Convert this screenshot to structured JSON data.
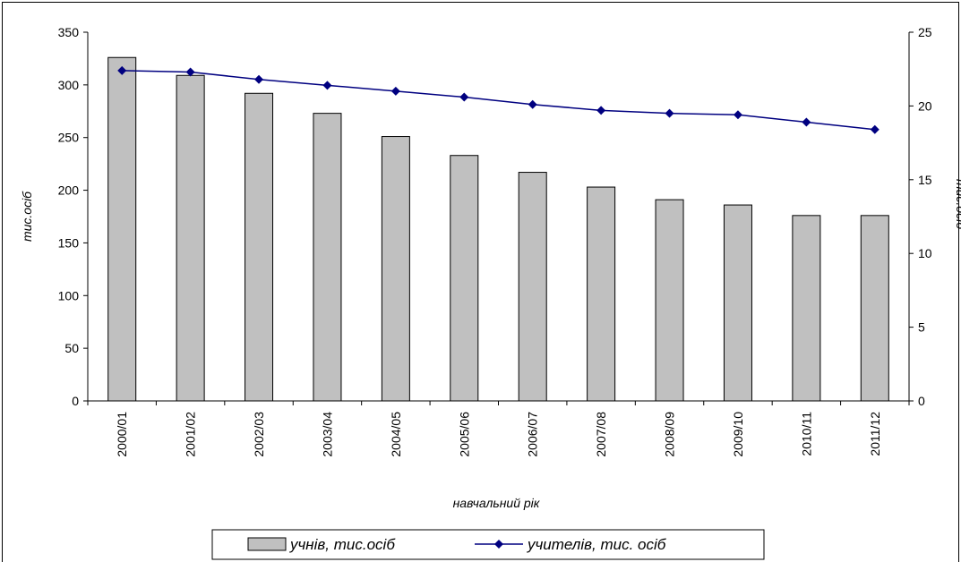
{
  "chart_data": {
    "type": "bar",
    "categories": [
      "2000/01",
      "2001/02",
      "2002/03",
      "2003/04",
      "2004/05",
      "2005/06",
      "2006/07",
      "2007/08",
      "2008/09",
      "2009/10",
      "2010/11",
      "2011/12"
    ],
    "series": [
      {
        "name": "учнів, тис.осіб",
        "type": "bar",
        "axis": "left",
        "color": "#c0c0c0",
        "values": [
          326,
          309,
          292,
          273,
          251,
          233,
          217,
          203,
          191,
          186,
          176,
          176
        ]
      },
      {
        "name": "учителів, тис. осіб",
        "type": "line",
        "axis": "right",
        "color": "#000080",
        "marker": "diamond",
        "values": [
          22.4,
          22.3,
          21.8,
          21.4,
          21.0,
          20.6,
          20.1,
          19.7,
          19.5,
          19.4,
          18.9,
          18.4
        ]
      }
    ],
    "xlabel": "навчальний рік",
    "ylabel": "тис.осіб",
    "y2label": "тис.осіб",
    "ylim": [
      0,
      350
    ],
    "yticks": [
      "0",
      "50",
      "100",
      "150",
      "200",
      "250",
      "300",
      "350"
    ],
    "y2lim": [
      0,
      25
    ],
    "y2ticks": [
      "0",
      "5",
      "10",
      "15",
      "20",
      "25"
    ],
    "grid": false,
    "legend_position": "bottom"
  }
}
